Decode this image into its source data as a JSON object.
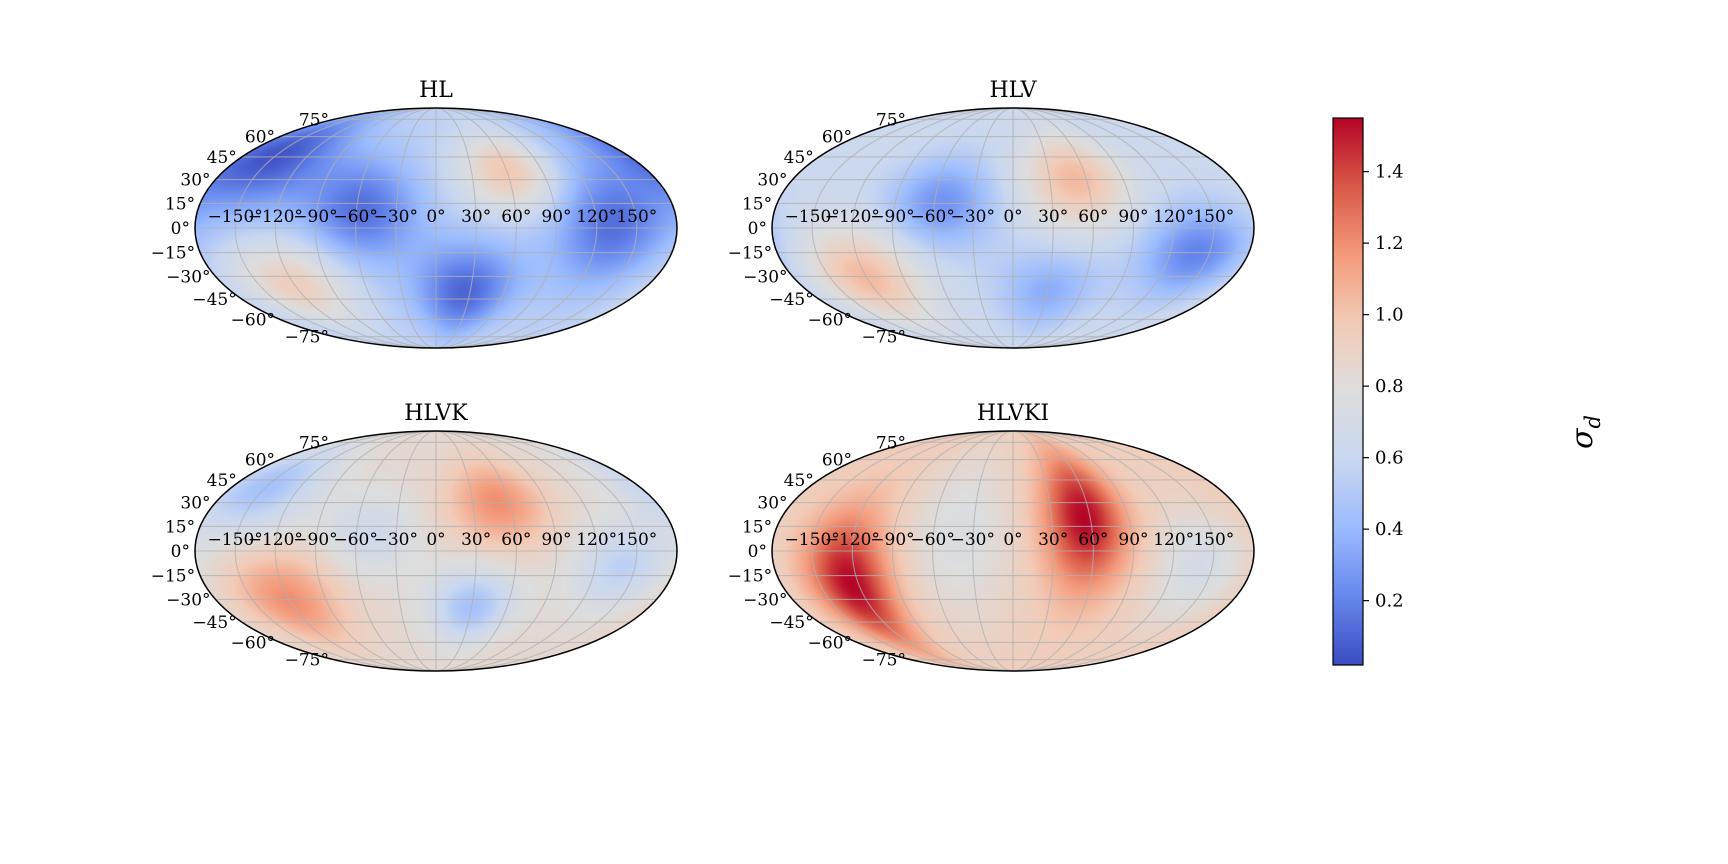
{
  "chart_data": [
    {
      "type": "heatmap",
      "projection": "mollweide",
      "title": "HL",
      "lon_ticks": [
        "−150°",
        "−120°",
        "−90°",
        "−60°",
        "−30°",
        "0°",
        "30°",
        "60°",
        "90°",
        "120°",
        "150°"
      ],
      "lat_ticks": [
        "75°",
        "60°",
        "45°",
        "30°",
        "15°",
        "0°",
        "−15°",
        "−30°",
        "−45°",
        "−60°",
        "−75°"
      ],
      "grid": true,
      "base": 0.55,
      "features": [
        {
          "lon": 60,
          "lat": 35,
          "value": 1.0,
          "spread_lon": 28,
          "spread_lat": 18
        },
        {
          "lon": -120,
          "lat": -35,
          "value": 0.95,
          "spread_lon": 32,
          "spread_lat": 20
        },
        {
          "lon": -150,
          "lat": 45,
          "value": 0.05,
          "spread_lon": 45,
          "spread_lat": 25
        },
        {
          "lon": -55,
          "lat": 10,
          "value": 0.15,
          "spread_lon": 30,
          "spread_lat": 22
        },
        {
          "lon": 25,
          "lat": -40,
          "value": 0.1,
          "spread_lon": 30,
          "spread_lat": 22
        },
        {
          "lon": 130,
          "lat": 0,
          "value": 0.15,
          "spread_lon": 30,
          "spread_lat": 25
        }
      ]
    },
    {
      "type": "heatmap",
      "projection": "mollweide",
      "title": "HLV",
      "lon_ticks": [
        "−150°",
        "−120°",
        "−90°",
        "−60°",
        "−30°",
        "0°",
        "30°",
        "60°",
        "90°",
        "120°",
        "150°"
      ],
      "lat_ticks": [
        "75°",
        "60°",
        "45°",
        "30°",
        "15°",
        "0°",
        "−15°",
        "−30°",
        "−45°",
        "−60°",
        "−75°"
      ],
      "grid": true,
      "base": 0.62,
      "features": [
        {
          "lon": 50,
          "lat": 30,
          "value": 1.05,
          "spread_lon": 30,
          "spread_lat": 22
        },
        {
          "lon": -120,
          "lat": -30,
          "value": 1.05,
          "spread_lon": 32,
          "spread_lat": 22
        },
        {
          "lon": -55,
          "lat": 15,
          "value": 0.25,
          "spread_lon": 30,
          "spread_lat": 20
        },
        {
          "lon": 140,
          "lat": -15,
          "value": 0.2,
          "spread_lon": 30,
          "spread_lat": 20
        },
        {
          "lon": 30,
          "lat": -40,
          "value": 0.35,
          "spread_lon": 30,
          "spread_lat": 20
        }
      ]
    },
    {
      "type": "heatmap",
      "projection": "mollweide",
      "title": "HLVK",
      "lon_ticks": [
        "−150°",
        "−120°",
        "−90°",
        "−60°",
        "−30°",
        "0°",
        "30°",
        "60°",
        "90°",
        "120°",
        "150°"
      ],
      "lat_ticks": [
        "75°",
        "60°",
        "45°",
        "30°",
        "15°",
        "0°",
        "−15°",
        "−30°",
        "−45°",
        "−60°",
        "−75°"
      ],
      "grid": true,
      "base": 0.85,
      "features": [
        {
          "lon": 50,
          "lat": 30,
          "value": 1.2,
          "spread_lon": 28,
          "spread_lat": 20
        },
        {
          "lon": -120,
          "lat": -30,
          "value": 1.2,
          "spread_lon": 30,
          "spread_lat": 22
        },
        {
          "lon": -150,
          "lat": 40,
          "value": 0.45,
          "spread_lon": 35,
          "spread_lat": 22
        },
        {
          "lon": 30,
          "lat": -35,
          "value": 0.45,
          "spread_lon": 25,
          "spread_lat": 18
        },
        {
          "lon": 140,
          "lat": -10,
          "value": 0.55,
          "spread_lon": 25,
          "spread_lat": 18
        },
        {
          "lon": -50,
          "lat": 10,
          "value": 0.65,
          "spread_lon": 25,
          "spread_lat": 18
        }
      ]
    },
    {
      "type": "heatmap",
      "projection": "mollweide",
      "title": "HLVKI",
      "lon_ticks": [
        "−150°",
        "−120°",
        "−90°",
        "−60°",
        "−30°",
        "0°",
        "30°",
        "60°",
        "90°",
        "120°",
        "150°"
      ],
      "lat_ticks": [
        "75°",
        "60°",
        "45°",
        "30°",
        "15°",
        "0°",
        "−15°",
        "−30°",
        "−45°",
        "−60°",
        "−75°"
      ],
      "grid": true,
      "base": 0.95,
      "features": [
        {
          "lon": 55,
          "lat": 20,
          "value": 1.55,
          "spread_lon": 22,
          "spread_lat": 30
        },
        {
          "lon": -125,
          "lat": -20,
          "value": 1.55,
          "spread_lon": 22,
          "spread_lat": 30
        },
        {
          "lon": -40,
          "lat": 10,
          "value": 0.75,
          "spread_lon": 30,
          "spread_lat": 40
        },
        {
          "lon": 140,
          "lat": -10,
          "value": 0.7,
          "spread_lon": 25,
          "spread_lat": 25
        }
      ]
    }
  ],
  "colorbar": {
    "label": "σ_d",
    "label_main": "σ",
    "label_sub": "d",
    "range": [
      0.02,
      1.55
    ],
    "ticks": [
      "0.2",
      "0.4",
      "0.6",
      "0.8",
      "1.0",
      "1.2",
      "1.4"
    ],
    "tick_values": [
      0.2,
      0.4,
      0.6,
      0.8,
      1.0,
      1.2,
      1.4
    ],
    "colormap": "coolwarm",
    "colors": [
      "#3b4cc0",
      "#6687ed",
      "#9abbff",
      "#c9d7f0",
      "#dddddd",
      "#f2cbb7",
      "#f49a7b",
      "#d95847",
      "#b40426"
    ]
  }
}
